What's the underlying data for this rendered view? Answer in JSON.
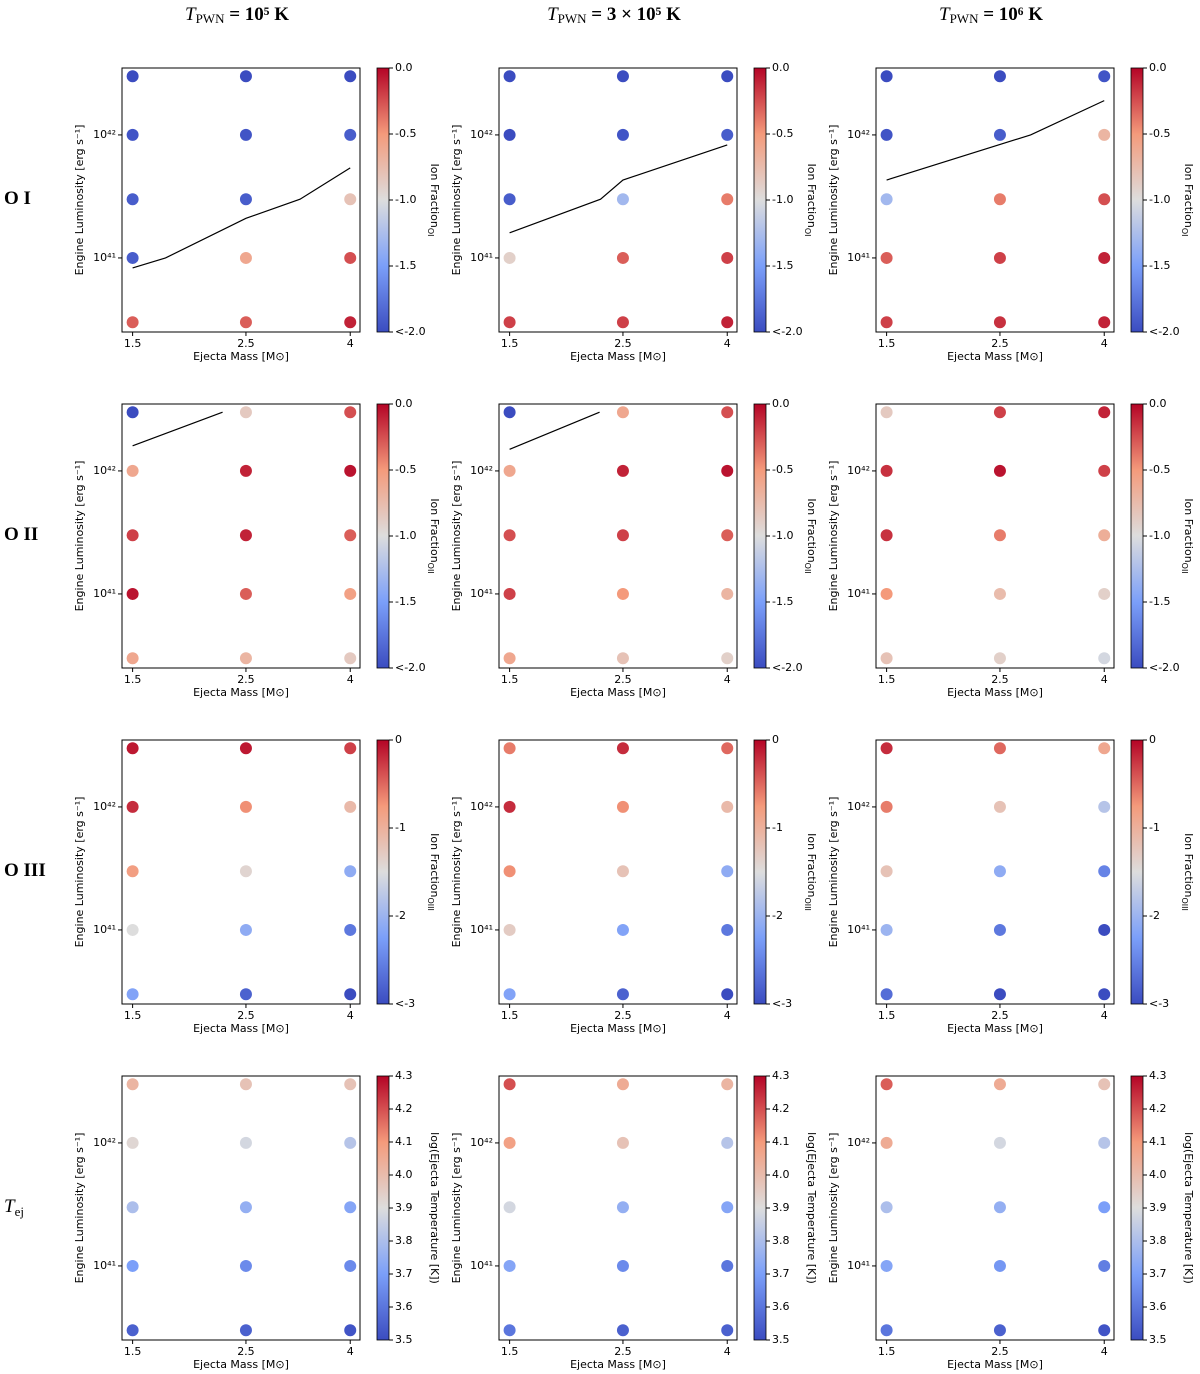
{
  "column_titles": [
    {
      "symbol": "T",
      "sub": "PWN",
      "rest": " = 10⁵  K"
    },
    {
      "symbol": "T",
      "sub": "PWN",
      "rest": " = 3 × 10⁵  K"
    },
    {
      "symbol": "T",
      "sub": "PWN",
      "rest": " = 10⁶  K"
    }
  ],
  "row_labels": [
    {
      "text": "O I"
    },
    {
      "text": "O II"
    },
    {
      "text": "O III"
    },
    {
      "symbol": "T",
      "sub": "ej"
    }
  ],
  "chart_data": [
    {
      "type": "scatter",
      "xlabel": "Ejecta Mass [M⊙]",
      "ylabel": "Engine Luminosity [erg s⁻¹]",
      "xscale": "log",
      "yscale": "log",
      "xlim": [
        1.43,
        4.18
      ],
      "ylim": [
        2.5e+40,
        3.5e+42
      ],
      "xticks": [
        1.5,
        2.5,
        4
      ],
      "yticks": [
        {
          "value": 1e+41,
          "label": "10⁴¹"
        },
        {
          "value": 1e+42,
          "label": "10⁴²"
        }
      ],
      "x": [
        1.5,
        2.5,
        4
      ],
      "y": [
        3e+40,
        1e+41,
        3e+41,
        1e+42,
        3e+42
      ],
      "values": [
        [
          -0.3,
          -0.3,
          -0.1
        ],
        [
          -1.9,
          -0.6,
          -0.25
        ],
        [
          -1.9,
          -1.9,
          -0.8
        ],
        [
          -1.95,
          -1.95,
          -1.9
        ],
        [
          -2,
          -2,
          -2
        ]
      ],
      "cmap": "coolwarm",
      "clim": [
        -2,
        0
      ],
      "cticks": [
        {
          "value": 0,
          "label": "0.0"
        },
        -0.5,
        {
          "value": -1,
          "label": "-1.0"
        },
        -1.5,
        {
          "value": -2,
          "label": "<-2.0"
        }
      ],
      "colorbar_label": {
        "text": "Ion Fraction",
        "sub": "OI"
      },
      "line": {
        "x": [
          1.5,
          1.74,
          2.5,
          3.19,
          4
        ],
        "y": [
          8.3e+40,
          1e+41,
          2.1e+41,
          3e+41,
          5.4e+41
        ]
      }
    },
    {
      "type": "scatter",
      "xlabel": "Ejecta Mass [M⊙]",
      "ylabel": "Engine Luminosity [erg s⁻¹]",
      "xscale": "log",
      "yscale": "log",
      "xlim": [
        1.43,
        4.18
      ],
      "ylim": [
        2.5e+40,
        3.5e+42
      ],
      "xticks": [
        1.5,
        2.5,
        4
      ],
      "yticks": [
        {
          "value": 1e+41,
          "label": "10⁴¹"
        },
        {
          "value": 1e+42,
          "label": "10⁴²"
        }
      ],
      "x": [
        1.5,
        2.5,
        4
      ],
      "y": [
        3e+40,
        1e+41,
        3e+41,
        1e+42,
        3e+42
      ],
      "values": [
        [
          -0.2,
          -0.2,
          -0.1
        ],
        [
          -0.9,
          -0.3,
          -0.2
        ],
        [
          -1.9,
          -1.3,
          -0.4
        ],
        [
          -2,
          -1.95,
          -1.9
        ],
        [
          -2,
          -2,
          -2
        ]
      ],
      "cmap": "coolwarm",
      "clim": [
        -2,
        0
      ],
      "cticks": [
        {
          "value": 0,
          "label": "0.0"
        },
        -0.5,
        {
          "value": -1,
          "label": "-1.0"
        },
        -1.5,
        {
          "value": -2,
          "label": "<-2.0"
        }
      ],
      "colorbar_label": {
        "text": "Ion Fraction",
        "sub": "OI"
      },
      "line": {
        "x": [
          1.5,
          2.26,
          2.5,
          4
        ],
        "y": [
          1.6e+41,
          3e+41,
          4.3e+41,
          8.3e+41
        ]
      }
    },
    {
      "type": "scatter",
      "xlabel": "Ejecta Mass [M⊙]",
      "ylabel": "Engine Luminosity [erg s⁻¹]",
      "xscale": "log",
      "yscale": "log",
      "xlim": [
        1.43,
        4.18
      ],
      "ylim": [
        2.5e+40,
        3.5e+42
      ],
      "xticks": [
        1.5,
        2.5,
        4
      ],
      "yticks": [
        {
          "value": 1e+41,
          "label": "10⁴¹"
        },
        {
          "value": 1e+42,
          "label": "10⁴²"
        }
      ],
      "x": [
        1.5,
        2.5,
        4
      ],
      "y": [
        3e+40,
        1e+41,
        3e+41,
        1e+42,
        3e+42
      ],
      "values": [
        [
          -0.2,
          -0.15,
          -0.1
        ],
        [
          -0.3,
          -0.2,
          -0.1
        ],
        [
          -1.3,
          -0.4,
          -0.25
        ],
        [
          -1.95,
          -1.9,
          -0.7
        ],
        [
          -2,
          -2,
          -1.95
        ]
      ],
      "cmap": "coolwarm",
      "clim": [
        -2,
        0
      ],
      "cticks": [
        {
          "value": 0,
          "label": "0.0"
        },
        -0.5,
        {
          "value": -1,
          "label": "-1.0"
        },
        -1.5,
        {
          "value": -2,
          "label": "<-2.0"
        }
      ],
      "colorbar_label": {
        "text": "Ion Fraction",
        "sub": "OI"
      },
      "line": {
        "x": [
          1.5,
          2.87,
          4
        ],
        "y": [
          4.3e+41,
          1e+42,
          1.9e+42
        ]
      }
    },
    {
      "type": "scatter",
      "xlabel": "Ejecta Mass [M⊙]",
      "ylabel": "Engine Luminosity [erg s⁻¹]",
      "xscale": "log",
      "yscale": "log",
      "xlim": [
        1.43,
        4.18
      ],
      "ylim": [
        2.5e+40,
        3.5e+42
      ],
      "xticks": [
        1.5,
        2.5,
        4
      ],
      "yticks": [
        {
          "value": 1e+41,
          "label": "10⁴¹"
        },
        {
          "value": 1e+42,
          "label": "10⁴²"
        }
      ],
      "x": [
        1.5,
        2.5,
        4
      ],
      "y": [
        3e+40,
        1e+41,
        3e+41,
        1e+42,
        3e+42
      ],
      "values": [
        [
          -0.6,
          -0.7,
          -0.85
        ],
        [
          -0.05,
          -0.3,
          -0.55
        ],
        [
          -0.2,
          -0.1,
          -0.3
        ],
        [
          -0.6,
          -0.1,
          -0.05
        ],
        [
          -2,
          -0.85,
          -0.25
        ]
      ],
      "cmap": "coolwarm",
      "clim": [
        -2,
        0
      ],
      "cticks": [
        {
          "value": 0,
          "label": "0.0"
        },
        -0.5,
        {
          "value": -1,
          "label": "-1.0"
        },
        -1.5,
        {
          "value": -2,
          "label": "<-2.0"
        }
      ],
      "colorbar_label": {
        "text": "Ion Fraction",
        "sub": "OII"
      },
      "line": {
        "x": [
          1.5,
          2.25
        ],
        "y": [
          1.6e+42,
          3e+42
        ]
      }
    },
    {
      "type": "scatter",
      "xlabel": "Ejecta Mass [M⊙]",
      "ylabel": "Engine Luminosity [erg s⁻¹]",
      "xscale": "log",
      "yscale": "log",
      "xlim": [
        1.43,
        4.18
      ],
      "ylim": [
        2.5e+40,
        3.5e+42
      ],
      "xticks": [
        1.5,
        2.5,
        4
      ],
      "yticks": [
        {
          "value": 1e+41,
          "label": "10⁴¹"
        },
        {
          "value": 1e+42,
          "label": "10⁴²"
        }
      ],
      "x": [
        1.5,
        2.5,
        4
      ],
      "y": [
        3e+40,
        1e+41,
        3e+41,
        1e+42,
        3e+42
      ],
      "values": [
        [
          -0.6,
          -0.8,
          -0.9
        ],
        [
          -0.2,
          -0.5,
          -0.7
        ],
        [
          -0.25,
          -0.2,
          -0.3
        ],
        [
          -0.6,
          -0.1,
          -0.05
        ],
        [
          -2,
          -0.6,
          -0.25
        ]
      ],
      "cmap": "coolwarm",
      "clim": [
        -2,
        0
      ],
      "cticks": [
        {
          "value": 0,
          "label": "0.0"
        },
        -0.5,
        {
          "value": -1,
          "label": "-1.0"
        },
        -1.5,
        {
          "value": -2,
          "label": "<-2.0"
        }
      ],
      "colorbar_label": {
        "text": "Ion Fraction",
        "sub": "OII"
      },
      "line": {
        "x": [
          1.5,
          2.25
        ],
        "y": [
          1.5e+42,
          3e+42
        ]
      }
    },
    {
      "type": "scatter",
      "xlabel": "Ejecta Mass [M⊙]",
      "ylabel": "Engine Luminosity [erg s⁻¹]",
      "xscale": "log",
      "yscale": "log",
      "xlim": [
        1.43,
        4.18
      ],
      "ylim": [
        2.5e+40,
        3.5e+42
      ],
      "xticks": [
        1.5,
        2.5,
        4
      ],
      "yticks": [
        {
          "value": 1e+41,
          "label": "10⁴¹"
        },
        {
          "value": 1e+42,
          "label": "10⁴²"
        }
      ],
      "x": [
        1.5,
        2.5,
        4
      ],
      "y": [
        3e+40,
        1e+41,
        3e+41,
        1e+42,
        3e+42
      ],
      "values": [
        [
          -0.8,
          -0.9,
          -1.05
        ],
        [
          -0.5,
          -0.75,
          -0.9
        ],
        [
          -0.15,
          -0.4,
          -0.65
        ],
        [
          -0.15,
          -0.05,
          -0.2
        ],
        [
          -0.85,
          -0.2,
          -0.1
        ]
      ],
      "cmap": "coolwarm",
      "clim": [
        -2,
        0
      ],
      "cticks": [
        {
          "value": 0,
          "label": "0.0"
        },
        -0.5,
        {
          "value": -1,
          "label": "-1.0"
        },
        -1.5,
        {
          "value": -2,
          "label": "<-2.0"
        }
      ],
      "colorbar_label": {
        "text": "Ion Fraction",
        "sub": "OII"
      }
    },
    {
      "type": "scatter",
      "xlabel": "Ejecta Mass [M⊙]",
      "ylabel": "Engine Luminosity [erg s⁻¹]",
      "xscale": "log",
      "yscale": "log",
      "xlim": [
        1.43,
        4.18
      ],
      "ylim": [
        2.5e+40,
        3.5e+42
      ],
      "xticks": [
        1.5,
        2.5,
        4
      ],
      "yticks": [
        {
          "value": 1e+41,
          "label": "10⁴¹"
        },
        {
          "value": 1e+42,
          "label": "10⁴²"
        }
      ],
      "x": [
        1.5,
        2.5,
        4
      ],
      "y": [
        3e+40,
        1e+41,
        3e+41,
        1e+42,
        3e+42
      ],
      "values": [
        [
          -2.2,
          -2.8,
          -3
        ],
        [
          -1.5,
          -2.1,
          -2.6
        ],
        [
          -0.8,
          -1.4,
          -2.1
        ],
        [
          -0.2,
          -0.7,
          -1.1
        ],
        [
          -0.1,
          -0.1,
          -0.3
        ]
      ],
      "cmap": "coolwarm",
      "clim": [
        -3,
        0
      ],
      "cticks": [
        0,
        -1,
        -2,
        {
          "value": -3,
          "label": "<-3"
        }
      ],
      "colorbar_label": {
        "text": "Ion Fraction",
        "sub": "OIII"
      }
    },
    {
      "type": "scatter",
      "xlabel": "Ejecta Mass [M⊙]",
      "ylabel": "Engine Luminosity [erg s⁻¹]",
      "xscale": "log",
      "yscale": "log",
      "xlim": [
        1.43,
        4.18
      ],
      "ylim": [
        2.5e+40,
        3.5e+42
      ],
      "xticks": [
        1.5,
        2.5,
        4
      ],
      "yticks": [
        {
          "value": 1e+41,
          "label": "10⁴¹"
        },
        {
          "value": 1e+42,
          "label": "10⁴²"
        }
      ],
      "x": [
        1.5,
        2.5,
        4
      ],
      "y": [
        3e+40,
        1e+41,
        3e+41,
        1e+42,
        3e+42
      ],
      "values": [
        [
          -2.2,
          -2.8,
          -3
        ],
        [
          -1.3,
          -2.2,
          -2.6
        ],
        [
          -0.7,
          -1.2,
          -2.1
        ],
        [
          -0.2,
          -0.7,
          -1.1
        ],
        [
          -0.6,
          -0.2,
          -0.5
        ]
      ],
      "cmap": "coolwarm",
      "clim": [
        -3,
        0
      ],
      "cticks": [
        0,
        -1,
        -2,
        {
          "value": -3,
          "label": "<-3"
        }
      ],
      "colorbar_label": {
        "text": "Ion Fraction",
        "sub": "OIII"
      }
    },
    {
      "type": "scatter",
      "xlabel": "Ejecta Mass [M⊙]",
      "ylabel": "Engine Luminosity [erg s⁻¹]",
      "xscale": "log",
      "yscale": "log",
      "xlim": [
        1.43,
        4.18
      ],
      "ylim": [
        2.5e+40,
        3.5e+42
      ],
      "xticks": [
        1.5,
        2.5,
        4
      ],
      "yticks": [
        {
          "value": 1e+41,
          "label": "10⁴¹"
        },
        {
          "value": 1e+42,
          "label": "10⁴²"
        }
      ],
      "x": [
        1.5,
        2.5,
        4
      ],
      "y": [
        3e+40,
        1e+41,
        3e+41,
        1e+42,
        3e+42
      ],
      "values": [
        [
          -2.7,
          -3,
          -3
        ],
        [
          -2.0,
          -2.6,
          -3
        ],
        [
          -1.2,
          -2.1,
          -2.5
        ],
        [
          -0.6,
          -1.2,
          -1.8
        ],
        [
          -0.2,
          -0.5,
          -0.9
        ]
      ],
      "cmap": "coolwarm",
      "clim": [
        -3,
        0
      ],
      "cticks": [
        0,
        -1,
        -2,
        {
          "value": -3,
          "label": "<-3"
        }
      ],
      "colorbar_label": {
        "text": "Ion Fraction",
        "sub": "OIII"
      }
    },
    {
      "type": "scatter",
      "xlabel": "Ejecta Mass [M⊙]",
      "ylabel": "Engine Luminosity [erg s⁻¹]",
      "xscale": "log",
      "yscale": "log",
      "xlim": [
        1.43,
        4.18
      ],
      "ylim": [
        2.5e+40,
        3.5e+42
      ],
      "xticks": [
        1.5,
        2.5,
        4
      ],
      "yticks": [
        {
          "value": 1e+41,
          "label": "10⁴¹"
        },
        {
          "value": 1e+42,
          "label": "10⁴²"
        }
      ],
      "x": [
        1.5,
        2.5,
        4
      ],
      "y": [
        3e+40,
        1e+41,
        3e+41,
        1e+42,
        3e+42
      ],
      "values": [
        [
          3.55,
          3.55,
          3.52
        ],
        [
          3.7,
          3.65,
          3.65
        ],
        [
          3.8,
          3.75,
          3.72
        ],
        [
          3.92,
          3.88,
          3.82
        ],
        [
          4.02,
          3.98,
          3.98
        ]
      ],
      "cmap": "coolwarm",
      "clim": [
        3.5,
        4.3
      ],
      "cticks": [
        3.5,
        3.6,
        3.7,
        3.8,
        3.9,
        {
          "value": 4,
          "label": "4.0"
        },
        4.1,
        4.2,
        4.3
      ],
      "colorbar_label": {
        "text": "log(Ejecta Temperature [K])"
      }
    },
    {
      "type": "scatter",
      "xlabel": "Ejecta Mass [M⊙]",
      "ylabel": "Engine Luminosity [erg s⁻¹]",
      "xscale": "log",
      "yscale": "log",
      "xlim": [
        1.43,
        4.18
      ],
      "ylim": [
        2.5e+40,
        3.5e+42
      ],
      "xticks": [
        1.5,
        2.5,
        4
      ],
      "yticks": [
        {
          "value": 1e+41,
          "label": "10⁴¹"
        },
        {
          "value": 1e+42,
          "label": "10⁴²"
        }
      ],
      "x": [
        1.5,
        2.5,
        4
      ],
      "y": [
        3e+40,
        1e+41,
        3e+41,
        1e+42,
        3e+42
      ],
      "values": [
        [
          3.6,
          3.55,
          3.55
        ],
        [
          3.72,
          3.65,
          3.6
        ],
        [
          3.88,
          3.75,
          3.72
        ],
        [
          4.08,
          3.98,
          3.82
        ],
        [
          4.2,
          4.05,
          4.02
        ]
      ],
      "cmap": "coolwarm",
      "clim": [
        3.5,
        4.3
      ],
      "cticks": [
        3.5,
        3.6,
        3.7,
        3.8,
        3.9,
        {
          "value": 4,
          "label": "4.0"
        },
        4.1,
        4.2,
        4.3
      ],
      "colorbar_label": {
        "text": "log(Ejecta Temperature [K])"
      }
    },
    {
      "type": "scatter",
      "xlabel": "Ejecta Mass [M⊙]",
      "ylabel": "Engine Luminosity [erg s⁻¹]",
      "xscale": "log",
      "yscale": "log",
      "xlim": [
        1.43,
        4.18
      ],
      "ylim": [
        2.5e+40,
        3.5e+42
      ],
      "xticks": [
        1.5,
        2.5,
        4
      ],
      "yticks": [
        {
          "value": 1e+41,
          "label": "10⁴¹"
        },
        {
          "value": 1e+42,
          "label": "10⁴²"
        }
      ],
      "x": [
        1.5,
        2.5,
        4
      ],
      "y": [
        3e+40,
        1e+41,
        3e+41,
        1e+42,
        3e+42
      ],
      "values": [
        [
          3.6,
          3.55,
          3.52
        ],
        [
          3.72,
          3.68,
          3.62
        ],
        [
          3.8,
          3.75,
          3.7
        ],
        [
          4.05,
          3.88,
          3.82
        ],
        [
          4.18,
          4.05,
          3.98
        ]
      ],
      "cmap": "coolwarm",
      "clim": [
        3.5,
        4.3
      ],
      "cticks": [
        3.5,
        3.6,
        3.7,
        3.8,
        3.9,
        {
          "value": 4,
          "label": "4.0"
        },
        4.1,
        4.2,
        4.3
      ],
      "colorbar_label": {
        "text": "log(Ejecta Temperature [K])"
      }
    }
  ]
}
